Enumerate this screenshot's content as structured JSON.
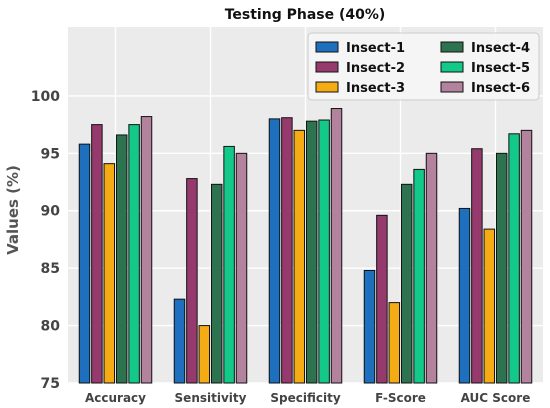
{
  "chart_data": {
    "type": "bar",
    "title": "Testing Phase (40%)",
    "xlabel": "",
    "ylabel": "Values (%)",
    "ylim": [
      75,
      106
    ],
    "yticks": [
      75,
      80,
      85,
      90,
      95,
      100
    ],
    "grid": true,
    "legend_position": "top-right",
    "categories": [
      "Accuracy",
      "Sensitivity",
      "Specificity",
      "F-Score",
      "AUC Score"
    ],
    "series": [
      {
        "name": "Insect-1",
        "color": "#1f6fbf",
        "values": [
          95.8,
          82.3,
          98.0,
          84.8,
          90.2
        ]
      },
      {
        "name": "Insect-2",
        "color": "#963a6e",
        "values": [
          97.5,
          92.8,
          98.1,
          89.6,
          95.4
        ]
      },
      {
        "name": "Insect-3",
        "color": "#f5ab14",
        "values": [
          94.1,
          80.0,
          97.0,
          82.0,
          88.4
        ]
      },
      {
        "name": "Insect-4",
        "color": "#2e7350",
        "values": [
          96.6,
          92.3,
          97.8,
          92.3,
          95.0
        ]
      },
      {
        "name": "Insect-5",
        "color": "#12c98a",
        "values": [
          97.5,
          95.6,
          97.9,
          93.6,
          96.7
        ]
      },
      {
        "name": "Insect-6",
        "color": "#b3829d",
        "values": [
          98.2,
          95.0,
          98.9,
          95.0,
          97.0
        ]
      }
    ]
  }
}
